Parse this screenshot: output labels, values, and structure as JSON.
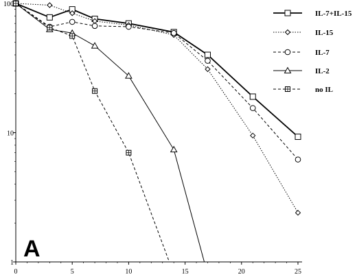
{
  "chart_data": {
    "type": "line",
    "title": "",
    "panel_label": "A",
    "xlabel": "",
    "ylabel": "",
    "xlim": [
      0,
      25
    ],
    "ylim": [
      1,
      100
    ],
    "y_scale": "log",
    "x_ticks": [
      "0",
      "5",
      "10",
      "15",
      "20",
      "25"
    ],
    "y_ticks": [
      "1",
      "10",
      "100"
    ],
    "grid": false,
    "legend_position": "top-right",
    "series": [
      {
        "name": "IL-7+IL-15",
        "marker": "square",
        "line_style": "solid",
        "line_weight": "bold",
        "x": [
          0,
          3,
          5,
          7,
          10,
          14,
          17,
          21,
          25
        ],
        "y": [
          100,
          78,
          90,
          76,
          70,
          60,
          40,
          19,
          9.3
        ]
      },
      {
        "name": "IL-15",
        "marker": "diamond",
        "line_style": "dotted",
        "line_weight": "normal",
        "x": [
          0,
          3,
          5,
          7,
          10,
          14,
          17,
          21,
          25
        ],
        "y": [
          100,
          97,
          84,
          73,
          68,
          57,
          31,
          9.5,
          2.4
        ]
      },
      {
        "name": "IL-7",
        "marker": "circle",
        "line_style": "dashed",
        "line_weight": "normal",
        "x": [
          0,
          3,
          5,
          7,
          10,
          14,
          17,
          21,
          25
        ],
        "y": [
          100,
          66,
          72,
          67,
          66,
          59,
          36,
          15.5,
          6.2
        ]
      },
      {
        "name": "IL-2",
        "marker": "triangle",
        "line_style": "solid",
        "line_weight": "normal",
        "x": [
          0,
          3,
          5,
          7,
          10,
          14,
          16.7
        ],
        "y": [
          100,
          63,
          59,
          47,
          27.5,
          7.4,
          1
        ]
      },
      {
        "name": "no IL",
        "marker": "crossed-square",
        "line_style": "dashed",
        "line_weight": "normal",
        "x": [
          0,
          3,
          5,
          7,
          10,
          13.6
        ],
        "y": [
          100,
          65,
          56,
          21,
          7,
          1
        ]
      }
    ]
  }
}
